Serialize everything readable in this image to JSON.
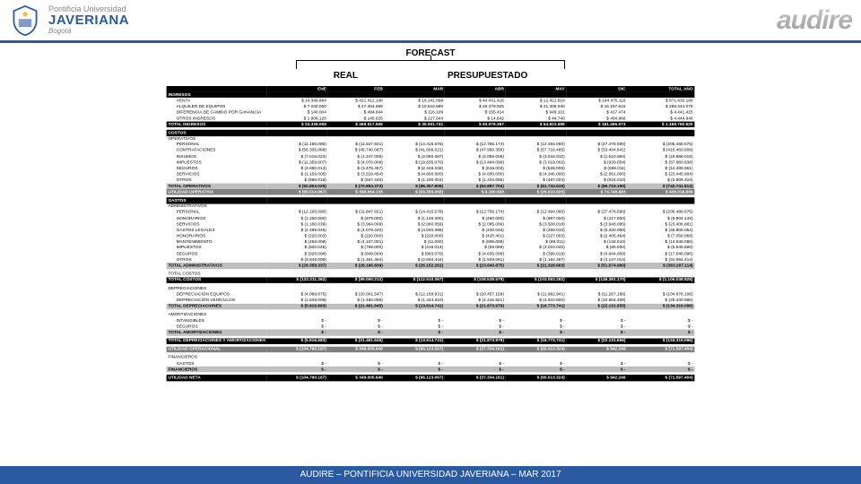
{
  "header": {
    "uni_top": "Pontificia Universidad",
    "uni_main": "JAVERIANA",
    "uni_city": "Bogotá",
    "right_logo": "audire"
  },
  "forecast": {
    "title": "FORECAST",
    "sub_left": "REAL",
    "sub_right": "PRESUPUESTADO"
  },
  "cols": [
    "",
    "ENE",
    "FEB",
    "MAR",
    "ABR",
    "MAY",
    "DIC",
    "TOTAL AÑO"
  ],
  "sections": [
    {
      "header": "INGRESOS",
      "rows": [
        [
          "VENTA",
          "$ 14.349.884",
          "$ 421.412.148",
          "$ 19.141.898",
          "$ 44.431.416",
          "$ 12.421.818",
          "$ 144.475.116",
          "$ 871.430.180"
        ],
        [
          "ALQUILER DE EQUIPOS",
          "$ 7.040.050",
          "$ 47.464.889",
          "$ 10.516.690",
          "$ 48.476.925",
          "$ 41.408.040",
          "$ 16.167.615",
          "$ 288.444.079"
        ],
        [
          "DIFERENCIA DE CAMBIO POR GANANCIA",
          "$ 140.004",
          "$ 494.844",
          "$ 116.109",
          "$ 155.414",
          "$ 949.101",
          "$ 417.474",
          "$ 4.441.415"
        ],
        [
          "OTROS INGRESOS",
          "$ 1.808.120",
          "$ 145.625",
          "$ 227.044",
          "$ 14.642",
          "$ 44.740",
          "$ 404.868",
          "$ 4.444.946"
        ]
      ],
      "total": [
        "TOTAL INGRESOS",
        "$ 23.338.058",
        "$ 469.517.506",
        "$ 30.001.741",
        "$ 93.078.397",
        "$ 54.823.699",
        "$ 161.465.073",
        "$ 1.168.760.620"
      ],
      "class": "black-row"
    },
    {
      "header": "COSTOS",
      "sub": "OPERATIVOS",
      "rows": [
        [
          "PERSONAL",
          "$ (11.165.090)",
          "$ (11.847.921)",
          "$ (14.415.576)",
          "$ (12.756.174)",
          "$ (12.494.090)",
          "$ (27.478.590)",
          "$ (205.488.675)"
        ],
        [
          "CONTRATACIONES",
          "$ (56.305.868)",
          "$ (45.740.087)",
          "$ (41.609.021)",
          "$ (47.950.356)",
          "$ (57.716.485)",
          "$ (53.404.641)",
          "$ (415.460.608)"
        ],
        [
          "INSUMOS",
          "$ (7.018.023)",
          "$ (1.247.006)",
          "$ (2.060.087)",
          "$ (4.058.008)",
          "$ (3.044.010)",
          "$ (1.610.884)",
          "$ (19.988.018)"
        ],
        [
          "IMPUESTOS",
          "$ (11.359.007)",
          "$ (4.076.008)",
          "$ (19.835.070)",
          "$ (13.484.098)",
          "$ (3.019.002)",
          "$ (939.054)",
          "$ (57.960.838)"
        ],
        [
          "SEGUROS",
          "$ (4.860.014)",
          "$ (3.475.457)",
          "$ (2.448.048)",
          "$ (615.003)",
          "$ (628.008)",
          "$ (698.011)",
          "$ (14.488.561)"
        ],
        [
          "SERVICIOS",
          "$ (1.159.005)",
          "$ (3.519.454)",
          "$ (4.800.000)",
          "$ (4.600.000)",
          "$ (4.346.000)",
          "$ (2.061.000)",
          "$ (23.445.804)"
        ],
        [
          "OTROS",
          "$ (986.018)",
          "$ (947.440)",
          "$ (1.190.004)",
          "$ (1.434.065)",
          "$ (487.024)",
          "$ (524.010)",
          "$ (5.909.310)"
        ]
      ],
      "total": [
        "TOTAL OPERATIVOS",
        "$ (92.853.025)",
        "$ (70.853.373)",
        "$ (86.357.806)",
        "$ (84.897.704)",
        "$ (81.734.619)",
        "$ (86.716.190)",
        "$ (742.741.814)"
      ],
      "class": "grey-row",
      "util": [
        "UTILIDAD OPERATIVA",
        "$ (69.514.967)",
        "$ 398.664.133",
        "$ (56.356.065)",
        "$ 8.180.693",
        "$ (26.910.920)",
        "$ 74.748.883",
        "$ 426.018.806"
      ],
      "util_class": "darkgrey-row"
    },
    {
      "header": "GASTOS",
      "sub": "ADMINISTRATIVOS",
      "rows": [
        [
          "PERSONAL",
          "$ (12.165.090)",
          "$ (11.847.921)",
          "$ (14.415.576)",
          "$ (12.756.174)",
          "$ (12.494.090)",
          "$ (27.478.590)",
          "$ (205.488.675)"
        ],
        [
          "HONORARIOS",
          "$ (1.250.000)",
          "$ (879.000)",
          "$ (1.146.000)",
          "$ (460.000)",
          "$ (967.000)",
          "$ (417.000)",
          "$ (8.904.148)"
        ],
        [
          "SERVICIOS",
          "$ (1.180.039)",
          "$ (3.964.009)",
          "$ (2.080.059)",
          "$ (2.085.089)",
          "$ (3.508.018)",
          "$ (3.948.085)",
          "$ (23.406.881)"
        ],
        [
          "GASTOS LEGALES",
          "$ (2.489.045)",
          "$ (4.079.440)",
          "$ (4.040.098)",
          "$ (400.045)",
          "$ (459.010)",
          "$ (8.400.008)",
          "$ (45.805.064)"
        ],
        [
          "HONORARIOS",
          "$ (220.003)",
          "$ (220.000)",
          "$ (220.000)",
          "$ (420.401)",
          "$ (227.003)",
          "$ (2.405.464)",
          "$ (7.058.068)"
        ],
        [
          "MANTENIMIENTO",
          "$ (458.008)",
          "$ (4.107.001)",
          "$ (11.000)",
          "$ (896.008)",
          "$ (89.011)",
          "$ (148.010)",
          "$ (14.048.088)"
        ],
        [
          "IMPUESTOS",
          "$ (820.045)",
          "$ (789.000)",
          "$ (416.014)",
          "$ (59.069)",
          "$ (2.010.045)",
          "$ (86.000)",
          "$ (6.545.680)"
        ],
        [
          "SEGUROS",
          "$ (928.098)",
          "$ (849.004)",
          "$ (983.070)",
          "$ (4.635.008)",
          "$ (390.019)",
          "$ (4.644.809)",
          "$ (17.046.096)"
        ],
        [
          "OTROS",
          "$ (9.848.009)",
          "$ (1.461.464)",
          "$ (2.840.444)",
          "$ (1.929.081)",
          "$ (1.184.467)",
          "$ (4.147.014)",
          "$ (34.994.414)"
        ]
      ],
      "total": [
        "TOTAL ADMINISTRATIVOS",
        "$ (29.358.337)",
        "$ (28.196.839)",
        "$ (26.152.261)",
        "$ (23.640.875)",
        "$ (21.328.663)",
        "$ (51.674.980)",
        "$ (363.297.114)"
      ],
      "class": "grey-row"
    },
    {
      "sub": "TOTAL COSTOS",
      "total": [
        "TOTAL COSTOS",
        "$ (122.211.362)",
        "$ (99.050.212)",
        "$ (112.510.067)",
        "$ (108.538.579)",
        "$ (103.063.282)",
        "$ (138.391.170)",
        "$ (1.106.038.928)"
      ],
      "class": "black-row"
    },
    {
      "sub": "DEPRECIACIONES",
      "rows": [
        [
          "DEPRECIACIÓN EQUIPOS",
          "$ (4.068.875)",
          "$ (20.001.547)",
          "$ (12.169.931)",
          "$ (20.457.158)",
          "$ (11.862.941)",
          "$ (11.267.186)",
          "$ (104.878.108)"
        ],
        [
          "DEPRECIACIÓN VEHÍCULOS",
          "$ (1.848.008)",
          "$ (1.460.098)",
          "$ (1.444.810)",
          "$ (1.416.821)",
          "$ (4.910.800)",
          "$ (10.864.469)",
          "$ (29.440.988)"
        ]
      ],
      "total": [
        "TOTAL DEPRECIACIONES",
        "$ (5.916.883)",
        "$ (21.461.645)",
        "$ (13.614.741)",
        "$ (21.873.979)",
        "$ (16.773.741)",
        "$ (22.131.655)",
        "$ (134.319.096)"
      ],
      "class": "grey-row"
    },
    {
      "sub": "AMORTIZACIONES",
      "rows": [
        [
          "INTANGIBLES",
          "$ -",
          "$ -",
          "$ -",
          "$ -",
          "$ -",
          "$ -",
          "$ -"
        ],
        [
          "SEGUROS",
          "$ -",
          "$ -",
          "$ -",
          "$ -",
          "$ -",
          "$ -",
          "$ -"
        ]
      ],
      "total": [
        "TOTAL AMORTIZACIONES",
        "$ -",
        "$ -",
        "$ -",
        "$ -",
        "$ -",
        "$ -",
        "$ -"
      ],
      "class": "grey-row"
    },
    {
      "total": [
        "TOTAL DEPRECIACIONES Y AMORTIZACIONES",
        "$ (5.916.883)",
        "$ (21.461.645)",
        "$ (13.614.741)",
        "$ (21.873.979)",
        "$ (16.773.741)",
        "$ (22.131.655)",
        "$ (134.319.096)"
      ],
      "class": "black-row"
    },
    {
      "total": [
        "UTILIDAD OPERACIONAL",
        "$ (104.790.187)",
        "$ 349.005.649",
        "$ (96.123.067)",
        "$ (37.334.161)",
        "$ (65.013.324)",
        "$ 942.248",
        "$ (71.597.404)"
      ],
      "class": "darkgrey-row"
    },
    {
      "sub": "FINANCIEROS",
      "rows": [
        [
          "GASTOS",
          "$ -",
          "$ -",
          "$ -",
          "$ -",
          "$ -",
          "$ -",
          "$ -"
        ]
      ],
      "total": [
        "FINANCIEROS",
        "$ -",
        "$ -",
        "$ -",
        "$ -",
        "$ -",
        "$ -",
        "$ -"
      ],
      "class": "grey-row"
    },
    {
      "total": [
        "UTILIDAD NETA",
        "$ (104.790.187)",
        "$ 349.005.649",
        "$ (96.123.067)",
        "$ (37.334.161)",
        "$ (65.013.324)",
        "$ 942.248",
        "$ (71.597.404)"
      ],
      "class": "black-row"
    }
  ],
  "footer": {
    "text_left": "AUDIRE – PONTIFICIA UNIVERSIDAD JAVERIANA",
    "text_right": " – MAR 2017"
  }
}
